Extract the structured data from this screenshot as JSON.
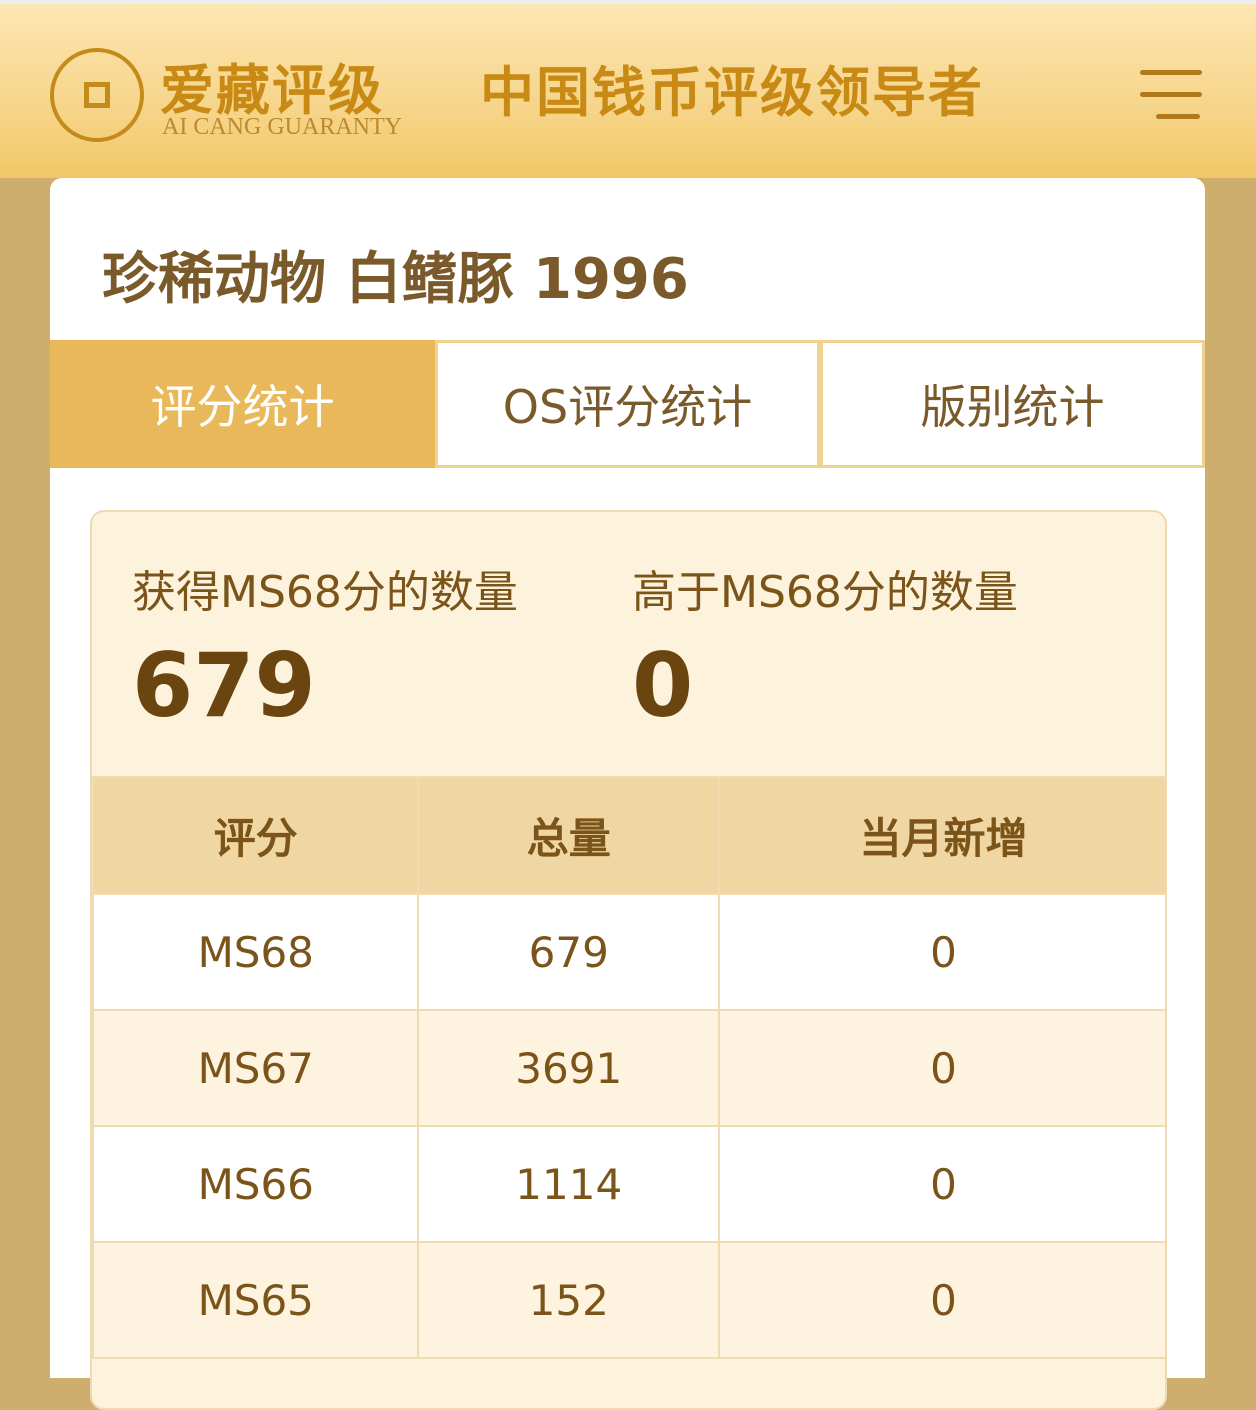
{
  "header": {
    "logo_cn": "爱藏评级",
    "logo_en": "AI CANG GUARANTY",
    "slogan": "中国钱币评级领导者",
    "coin_chars": "爱藏"
  },
  "page_title": "珍稀动物 白鳍豚 1996",
  "tabs": [
    {
      "label": "评分统计",
      "active": true
    },
    {
      "label": "OS评分统计"
    },
    {
      "label": "版别统计"
    }
  ],
  "stats": {
    "count_label": "获得MS68分的数量",
    "count_value": "679",
    "above_label": "高于MS68分的数量",
    "above_value": "0"
  },
  "table": {
    "headers": [
      "评分",
      "总量",
      "当月新增"
    ],
    "rows": [
      [
        "MS68",
        "679",
        "0"
      ],
      [
        "MS67",
        "3691",
        "0"
      ],
      [
        "MS66",
        "1114",
        "0"
      ],
      [
        "MS65",
        "152",
        "0"
      ]
    ]
  },
  "colors": {
    "accent": "#e8b85a",
    "text": "#7a5418",
    "background": "#cdae6c"
  }
}
